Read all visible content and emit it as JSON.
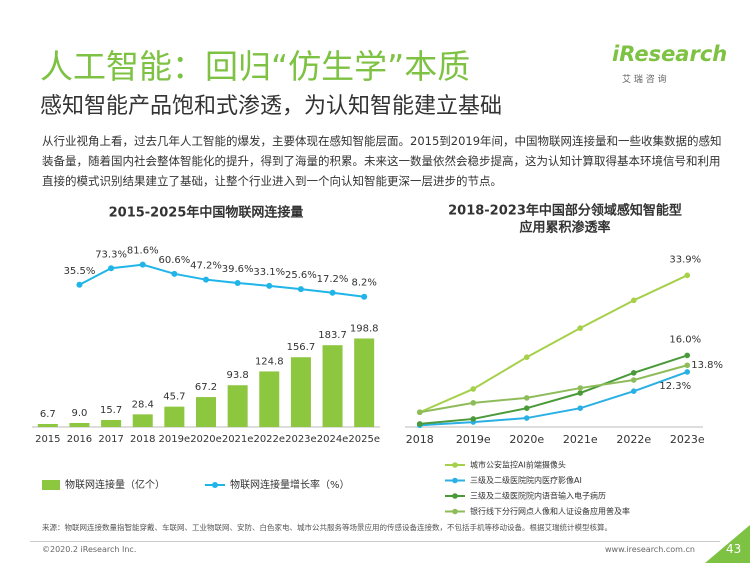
{
  "header": {
    "title": "人工智能：回归“仿生学”本质",
    "subtitle": "感知智能产品饱和式渗透，为认知智能建立基础"
  },
  "logo": {
    "brand": "iResearch",
    "chinese": "艾 瑞 咨 询"
  },
  "body": "从行业视角上看，过去几年人工智能的爆发，主要体现在感知智能层面。2015到2019年间，中国物联网连接量和一些收集数据的感知装备量，随着国内社会整体智能化的提升，得到了海量的积累。未来这一数量依然会稳步提高，这为认知计算取得基本环境信号和利用直接的模式识别结果建立了基础，让整个行业进入到一个向认知智能更深一层进步的节点。",
  "source": "来源：物联网连接数量指智能穿戴、车联网、工业物联网、安防、白色家电、城市公共服务等场景应用的传感设备连接数，不包括手机等移动设备。根据艾瑞统计模型核算。",
  "footer": {
    "copyright": "©2020.2 iResearch Inc.",
    "url": "www.iresearch.com.cn",
    "page": "43"
  },
  "chart_data": [
    {
      "type": "bar",
      "title": "2015-2025年中国物联网连接量",
      "categories": [
        "2015",
        "2016",
        "2017",
        "2018",
        "2019e",
        "2020e",
        "2021e",
        "2022e",
        "2023e",
        "2024e",
        "2025e"
      ],
      "ylim": [
        0,
        420
      ],
      "y2lim": [
        -290,
        138
      ],
      "series": [
        {
          "name": "物联网连接量（亿个）",
          "color": "#8dc63f",
          "values": [
            6.7,
            9.0,
            15.7,
            28.4,
            45.7,
            67.2,
            93.8,
            124.8,
            156.7,
            183.7,
            198.8
          ],
          "value_labels": [
            "6.7",
            "9.0",
            "15.7",
            "28.4",
            "45.7",
            "67.2",
            "93.8",
            "124.8",
            "156.7",
            "183.7",
            "198.8"
          ]
        },
        {
          "name": "物联网连接量增长率（%）",
          "type": "line",
          "axis": "y2",
          "color": "#1fb5e8",
          "values": [
            null,
            35.5,
            73.3,
            81.6,
            60.6,
            47.2,
            39.6,
            33.1,
            25.6,
            17.2,
            8.2
          ],
          "value_labels": [
            null,
            "35.5%",
            "73.3%",
            "81.6%",
            "60.6%",
            "47.2%",
            "39.6%",
            "33.1%",
            "25.6%",
            "17.2%",
            "8.2%"
          ]
        }
      ]
    },
    {
      "type": "line",
      "title": [
        "2018-2023年中国部分领域感知智能型",
        "应用累积渗透率"
      ],
      "categories": [
        "2018",
        "2019e",
        "2020e",
        "2021e",
        "2022e",
        "2023e"
      ],
      "ylim": [
        0,
        40
      ],
      "series": [
        {
          "name": "城市公安监控AI前端摄像头",
          "color": "#a6d04a",
          "values": [
            3.3,
            8.5,
            15.6,
            22.1,
            28.3,
            33.9
          ],
          "value_labels": [
            null,
            null,
            null,
            null,
            null,
            "33.9%"
          ]
        },
        {
          "name": "三级及二级医院院内医疗影像AI",
          "color": "#2ab0e4",
          "values": [
            0.4,
            1.1,
            2.0,
            4.2,
            8.0,
            12.3
          ],
          "value_labels": [
            null,
            null,
            null,
            null,
            null,
            "12.3%"
          ]
        },
        {
          "name": "三级及二级医院院内语音输入电子病历",
          "color": "#4a9a3a",
          "values": [
            0.7,
            1.8,
            4.2,
            7.6,
            12.1,
            16.0
          ],
          "value_labels": [
            null,
            null,
            null,
            null,
            null,
            "16.0%"
          ]
        },
        {
          "name": "银行线下分行网点人像和人证设备应用普及率",
          "color": "#8fbc5a",
          "values": [
            3.3,
            5.4,
            6.5,
            8.7,
            10.5,
            13.8
          ],
          "value_labels": [
            null,
            null,
            null,
            null,
            null,
            "13.8%"
          ]
        }
      ]
    }
  ]
}
